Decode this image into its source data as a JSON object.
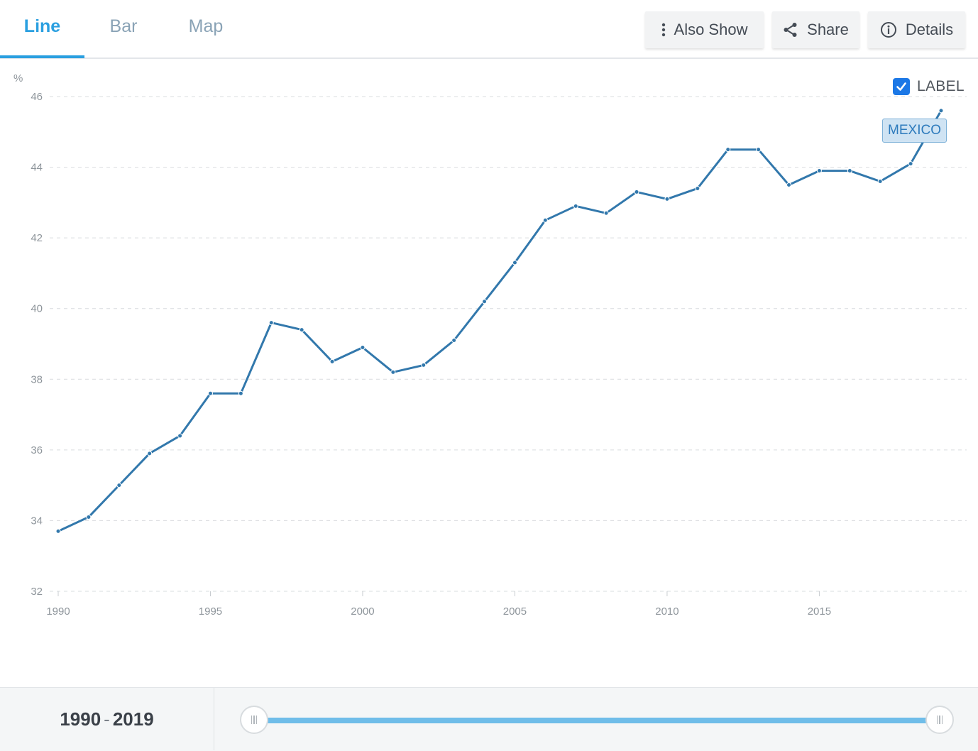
{
  "tabs": [
    {
      "label": "Line",
      "active": true
    },
    {
      "label": "Bar",
      "active": false
    },
    {
      "label": "Map",
      "active": false
    }
  ],
  "toolbar": {
    "also_show": {
      "label": "Also Show",
      "icon": "more-vertical-icon"
    },
    "share": {
      "label": "Share",
      "icon": "share-icon"
    },
    "details": {
      "label": "Details",
      "icon": "info-icon"
    }
  },
  "label_toggle": {
    "label": "LABEL",
    "checked": true
  },
  "chart_data": {
    "type": "line",
    "ylabel": "%",
    "xlabel": "",
    "ylim": [
      32,
      46
    ],
    "yticks": [
      32,
      34,
      36,
      38,
      40,
      42,
      44,
      46
    ],
    "xticks": [
      1990,
      1995,
      2000,
      2005,
      2010,
      2015
    ],
    "xlim": [
      1990,
      2019
    ],
    "grid": "horizontal-dashed",
    "series": [
      {
        "name": "MEXICO",
        "color": "#3278ac",
        "x": [
          1990,
          1991,
          1992,
          1993,
          1994,
          1995,
          1996,
          1997,
          1998,
          1999,
          2000,
          2001,
          2002,
          2003,
          2004,
          2005,
          2006,
          2007,
          2008,
          2009,
          2010,
          2011,
          2012,
          2013,
          2014,
          2015,
          2016,
          2017,
          2018,
          2019
        ],
        "values": [
          33.7,
          34.1,
          35.0,
          35.9,
          36.4,
          37.6,
          37.6,
          39.6,
          39.4,
          38.5,
          38.9,
          38.2,
          38.4,
          39.1,
          40.2,
          41.3,
          42.5,
          42.9,
          42.7,
          43.3,
          43.1,
          43.4,
          44.5,
          44.5,
          43.5,
          43.9,
          43.9,
          43.6,
          44.1,
          45.6
        ]
      }
    ]
  },
  "range": {
    "start": "1990",
    "end": "2019",
    "separator": "-"
  },
  "colors": {
    "accent": "#2a9fe0",
    "series": "#3278ac",
    "slider": "#6fbde9"
  }
}
